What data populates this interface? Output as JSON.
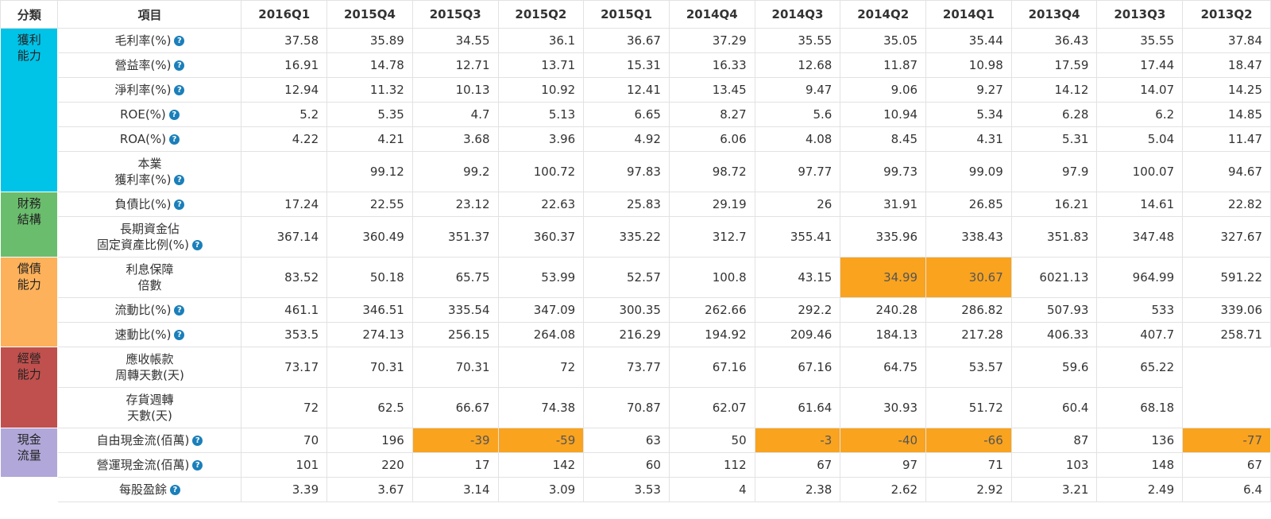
{
  "headers": {
    "category": "分類",
    "item": "項目",
    "periods": [
      "2016Q1",
      "2015Q4",
      "2015Q3",
      "2015Q2",
      "2015Q1",
      "2014Q4",
      "2014Q3",
      "2014Q2",
      "2014Q1",
      "2013Q4",
      "2013Q3",
      "2013Q2"
    ]
  },
  "help_icon": "?",
  "colors": {
    "highlight": "#f9a31f",
    "profitability": "#00c3e8",
    "structure": "#6bbd6e",
    "solvency": "#fdb15a",
    "operating": "#c0504d",
    "cashflow": "#b1a8d9"
  },
  "categories": [
    {
      "name": "獲利能力",
      "color": "#00c3e8",
      "rows": [
        {
          "item": [
            "毛利率(%)"
          ],
          "help": true,
          "values": [
            "37.58",
            "35.89",
            "34.55",
            "36.1",
            "36.67",
            "37.29",
            "35.55",
            "35.05",
            "35.44",
            "36.43",
            "35.55",
            "37.84"
          ],
          "highlight": []
        },
        {
          "item": [
            "營益率(%)"
          ],
          "help": true,
          "values": [
            "16.91",
            "14.78",
            "12.71",
            "13.71",
            "15.31",
            "16.33",
            "12.68",
            "11.87",
            "10.98",
            "17.59",
            "17.44",
            "18.47"
          ],
          "highlight": []
        },
        {
          "item": [
            "淨利率(%)"
          ],
          "help": true,
          "values": [
            "12.94",
            "11.32",
            "10.13",
            "10.92",
            "12.41",
            "13.45",
            "9.47",
            "9.06",
            "9.27",
            "14.12",
            "14.07",
            "14.25"
          ],
          "highlight": []
        },
        {
          "item": [
            "ROE(%)"
          ],
          "help": true,
          "values": [
            "5.2",
            "5.35",
            "4.7",
            "5.13",
            "6.65",
            "8.27",
            "5.6",
            "10.94",
            "5.34",
            "6.28",
            "6.2",
            "14.85"
          ],
          "highlight": []
        },
        {
          "item": [
            "ROA(%)"
          ],
          "help": true,
          "values": [
            "4.22",
            "4.21",
            "3.68",
            "3.96",
            "4.92",
            "6.06",
            "4.08",
            "8.45",
            "4.31",
            "5.31",
            "5.04",
            "11.47"
          ],
          "highlight": []
        },
        {
          "item": [
            "本業",
            "獲利率(%)"
          ],
          "help": true,
          "values": [
            "",
            "99.12",
            "99.2",
            "100.72",
            "97.83",
            "98.72",
            "97.77",
            "99.73",
            "99.09",
            "97.9",
            "100.07",
            "94.67"
          ],
          "highlight": []
        }
      ]
    },
    {
      "name": "財務結構",
      "color": "#6bbd6e",
      "rows": [
        {
          "item": [
            "負債比(%)"
          ],
          "help": true,
          "values": [
            "17.24",
            "22.55",
            "23.12",
            "22.63",
            "25.83",
            "29.19",
            "26",
            "31.91",
            "26.85",
            "16.21",
            "14.61",
            "22.82"
          ],
          "highlight": []
        },
        {
          "item": [
            "長期資金佔",
            "固定資產比例(%)"
          ],
          "help": true,
          "values": [
            "367.14",
            "360.49",
            "351.37",
            "360.37",
            "335.22",
            "312.7",
            "355.41",
            "335.96",
            "338.43",
            "351.83",
            "347.48",
            "327.67"
          ],
          "highlight": []
        }
      ]
    },
    {
      "name": "償債能力",
      "color": "#fdb15a",
      "rows": [
        {
          "item": [
            "利息保障",
            "倍數"
          ],
          "help": false,
          "values": [
            "83.52",
            "50.18",
            "65.75",
            "53.99",
            "52.57",
            "100.8",
            "43.15",
            "34.99",
            "30.67",
            "6021.13",
            "964.99",
            "591.22"
          ],
          "highlight": [
            7,
            8
          ]
        },
        {
          "item": [
            "流動比(%)"
          ],
          "help": true,
          "values": [
            "461.1",
            "346.51",
            "335.54",
            "347.09",
            "300.35",
            "262.66",
            "292.2",
            "240.28",
            "286.82",
            "507.93",
            "533",
            "339.06"
          ],
          "highlight": []
        },
        {
          "item": [
            "速動比(%)"
          ],
          "help": true,
          "values": [
            "353.5",
            "274.13",
            "256.15",
            "264.08",
            "216.29",
            "194.92",
            "209.46",
            "184.13",
            "217.28",
            "406.33",
            "407.7",
            "258.71"
          ],
          "highlight": []
        }
      ]
    },
    {
      "name": "經營能力",
      "color": "#c0504d",
      "rows": [
        {
          "item": [
            "應收帳款",
            "周轉天數(天)"
          ],
          "help": false,
          "values": [
            "73.17",
            "70.31",
            "70.31",
            "72",
            "73.77",
            "67.16",
            "67.16",
            "64.75",
            "53.57",
            "59.6",
            "65.22",
            ""
          ],
          "highlight": []
        },
        {
          "item": [
            "存貨週轉",
            "天數(天)"
          ],
          "help": false,
          "values": [
            "72",
            "62.5",
            "66.67",
            "74.38",
            "70.87",
            "62.07",
            "61.64",
            "30.93",
            "51.72",
            "60.4",
            "68.18",
            ""
          ],
          "highlight": []
        }
      ]
    },
    {
      "name": "現金流量",
      "color": "#b1a8d9",
      "rows": [
        {
          "item": [
            "自由現金流(佰萬)"
          ],
          "help": true,
          "values": [
            "70",
            "196",
            "-39",
            "-59",
            "63",
            "50",
            "-3",
            "-40",
            "-66",
            "87",
            "136",
            "-77"
          ],
          "highlight": [
            2,
            3,
            6,
            7,
            8,
            11
          ]
        },
        {
          "item": [
            "營運現金流(佰萬)"
          ],
          "help": true,
          "values": [
            "101",
            "220",
            "17",
            "142",
            "60",
            "112",
            "67",
            "97",
            "71",
            "103",
            "148",
            "67"
          ],
          "highlight": []
        }
      ]
    },
    {
      "name": "",
      "color": "#ffffff",
      "rows": [
        {
          "item": [
            "每股盈餘"
          ],
          "help": true,
          "values": [
            "3.39",
            "3.67",
            "3.14",
            "3.09",
            "3.53",
            "4",
            "2.38",
            "2.62",
            "2.92",
            "3.21",
            "2.49",
            "6.4"
          ],
          "highlight": []
        }
      ]
    }
  ]
}
